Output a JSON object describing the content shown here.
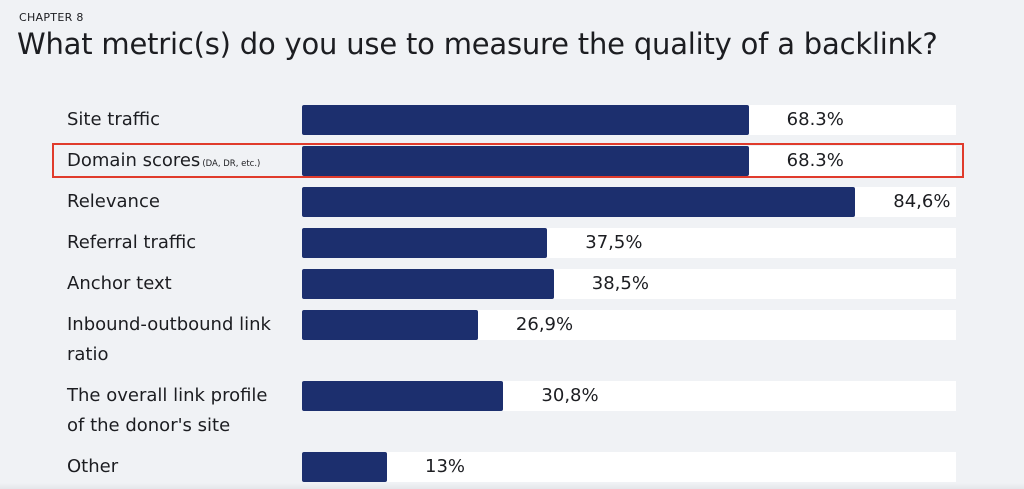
{
  "header": {
    "chapter": "CHAPTER 8",
    "title": "What metric(s) do you use to measure the quality of a backlink?"
  },
  "colors": {
    "bar": "#1c2f6e",
    "track": "#ffffff",
    "background": "#f0f2f5",
    "highlight": "#e03b2c"
  },
  "chart_data": {
    "type": "bar",
    "orientation": "horizontal",
    "title": "What metric(s) do you use to measure the quality of a backlink?",
    "xlim": [
      0,
      100
    ],
    "highlighted_category": "Domain scores",
    "rows": [
      {
        "label_lines": [
          "Site traffic"
        ],
        "note": "",
        "value": 68.3,
        "value_label": "68.3%"
      },
      {
        "label_lines": [
          "Domain scores"
        ],
        "note": "(DA, DR, etc.)",
        "value": 68.3,
        "value_label": "68.3%"
      },
      {
        "label_lines": [
          "Relevance"
        ],
        "note": "",
        "value": 84.6,
        "value_label": "84,6%"
      },
      {
        "label_lines": [
          "Referral traffic"
        ],
        "note": "",
        "value": 37.5,
        "value_label": "37,5%"
      },
      {
        "label_lines": [
          "Anchor text"
        ],
        "note": "",
        "value": 38.5,
        "value_label": "38,5%"
      },
      {
        "label_lines": [
          "Inbound-outbound link",
          "ratio"
        ],
        "note": "",
        "value": 26.9,
        "value_label": "26,9%"
      },
      {
        "label_lines": [
          "The overall link profile",
          "of the donor's site"
        ],
        "note": "",
        "value": 30.8,
        "value_label": "30,8%"
      },
      {
        "label_lines": [
          "Other"
        ],
        "note": "",
        "value": 13,
        "value_label": "13%"
      }
    ]
  }
}
